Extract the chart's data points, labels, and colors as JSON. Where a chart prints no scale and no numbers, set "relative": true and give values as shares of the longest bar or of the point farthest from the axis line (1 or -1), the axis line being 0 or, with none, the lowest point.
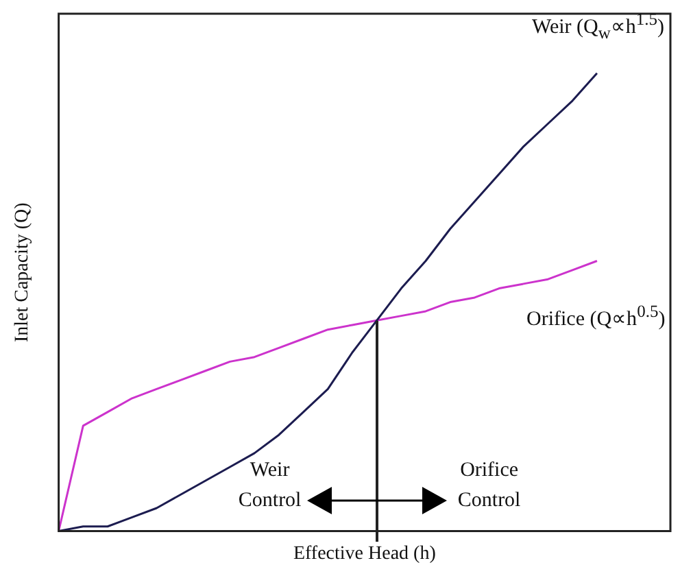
{
  "chart_data": {
    "type": "line",
    "relative": true,
    "xlabel": "Effective Head (h)",
    "ylabel": "Inlet Capacity (Q)",
    "categories": [
      null,
      null,
      null,
      null,
      null,
      null,
      null,
      null,
      null,
      null,
      null,
      null,
      null,
      null,
      null,
      null,
      null,
      null,
      null,
      null,
      null,
      null,
      null,
      null,
      null,
      null
    ],
    "series": [
      {
        "name": "Weir (Q$_{w}$∝h$^{1.5}$)",
        "color": "#1c1c50",
        "values": [
          0,
          0.01,
          0.01,
          0.03,
          0.05,
          0.08,
          0.11,
          0.14,
          0.17,
          0.21,
          0.26,
          0.31,
          0.39,
          0.46,
          0.53,
          0.59,
          0.66,
          0.72,
          0.78,
          0.84,
          0.89,
          0.94,
          1,
          null,
          null,
          null
        ]
      },
      {
        "name": "Orifice (Q∝h$^{0.5}$)",
        "color": "#cc33cc",
        "values": [
          0,
          0.23,
          0.26,
          0.29,
          0.31,
          0.33,
          0.35,
          0.37,
          0.38,
          0.4,
          0.42,
          0.44,
          0.45,
          0.46,
          0.47,
          0.48,
          0.5,
          0.51,
          0.53,
          0.54,
          0.55,
          0.57,
          0.59,
          null,
          null,
          null
        ]
      }
    ],
    "annotations": [
      "Weir Control",
      "Orifice Control"
    ],
    "legend": false,
    "grid": false,
    "marker": "none",
    "tick_labels": false
  }
}
